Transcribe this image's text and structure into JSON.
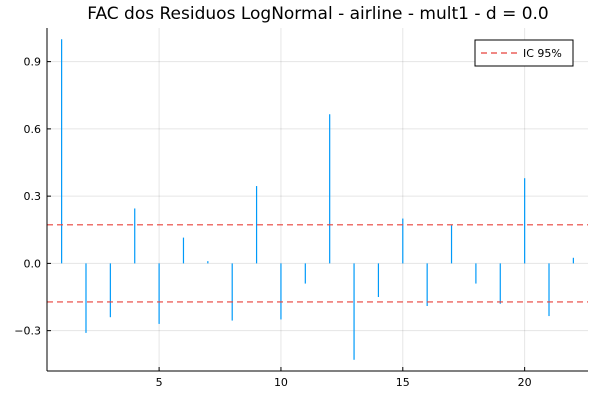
{
  "chart_data": {
    "type": "bar",
    "title": "FAC dos Residuos  LogNormal - airline - mult1 - d = 0.0",
    "xlabel": "",
    "ylabel": "",
    "xlim": [
      0.4,
      22.6
    ],
    "ylim": [
      -0.48,
      1.05
    ],
    "x_ticks": [
      5,
      10,
      15,
      20
    ],
    "y_ticks": [
      -0.3,
      0.0,
      0.3,
      0.6,
      0.9
    ],
    "y_tick_labels": [
      "−0.3",
      "0.0",
      "0.3",
      "0.6",
      "0.9"
    ],
    "grid": true,
    "legend_position": "top-right",
    "series": [
      {
        "style": "sticks",
        "color": "#009AF9",
        "x": [
          1,
          2,
          3,
          4,
          5,
          6,
          7,
          8,
          9,
          10,
          11,
          12,
          13,
          14,
          15,
          16,
          17,
          18,
          19,
          20,
          21,
          22
        ],
        "values": [
          1.0,
          -0.31,
          -0.24,
          0.245,
          -0.27,
          0.115,
          0.01,
          -0.255,
          0.345,
          -0.25,
          -0.09,
          0.665,
          -0.43,
          -0.15,
          0.2,
          -0.19,
          0.17,
          -0.09,
          -0.18,
          0.38,
          -0.235,
          0.025
        ]
      },
      {
        "name": "IC 95%",
        "style": "dashed-hline",
        "color": "#E8423B",
        "values": [
          0.172,
          -0.172
        ]
      }
    ]
  }
}
